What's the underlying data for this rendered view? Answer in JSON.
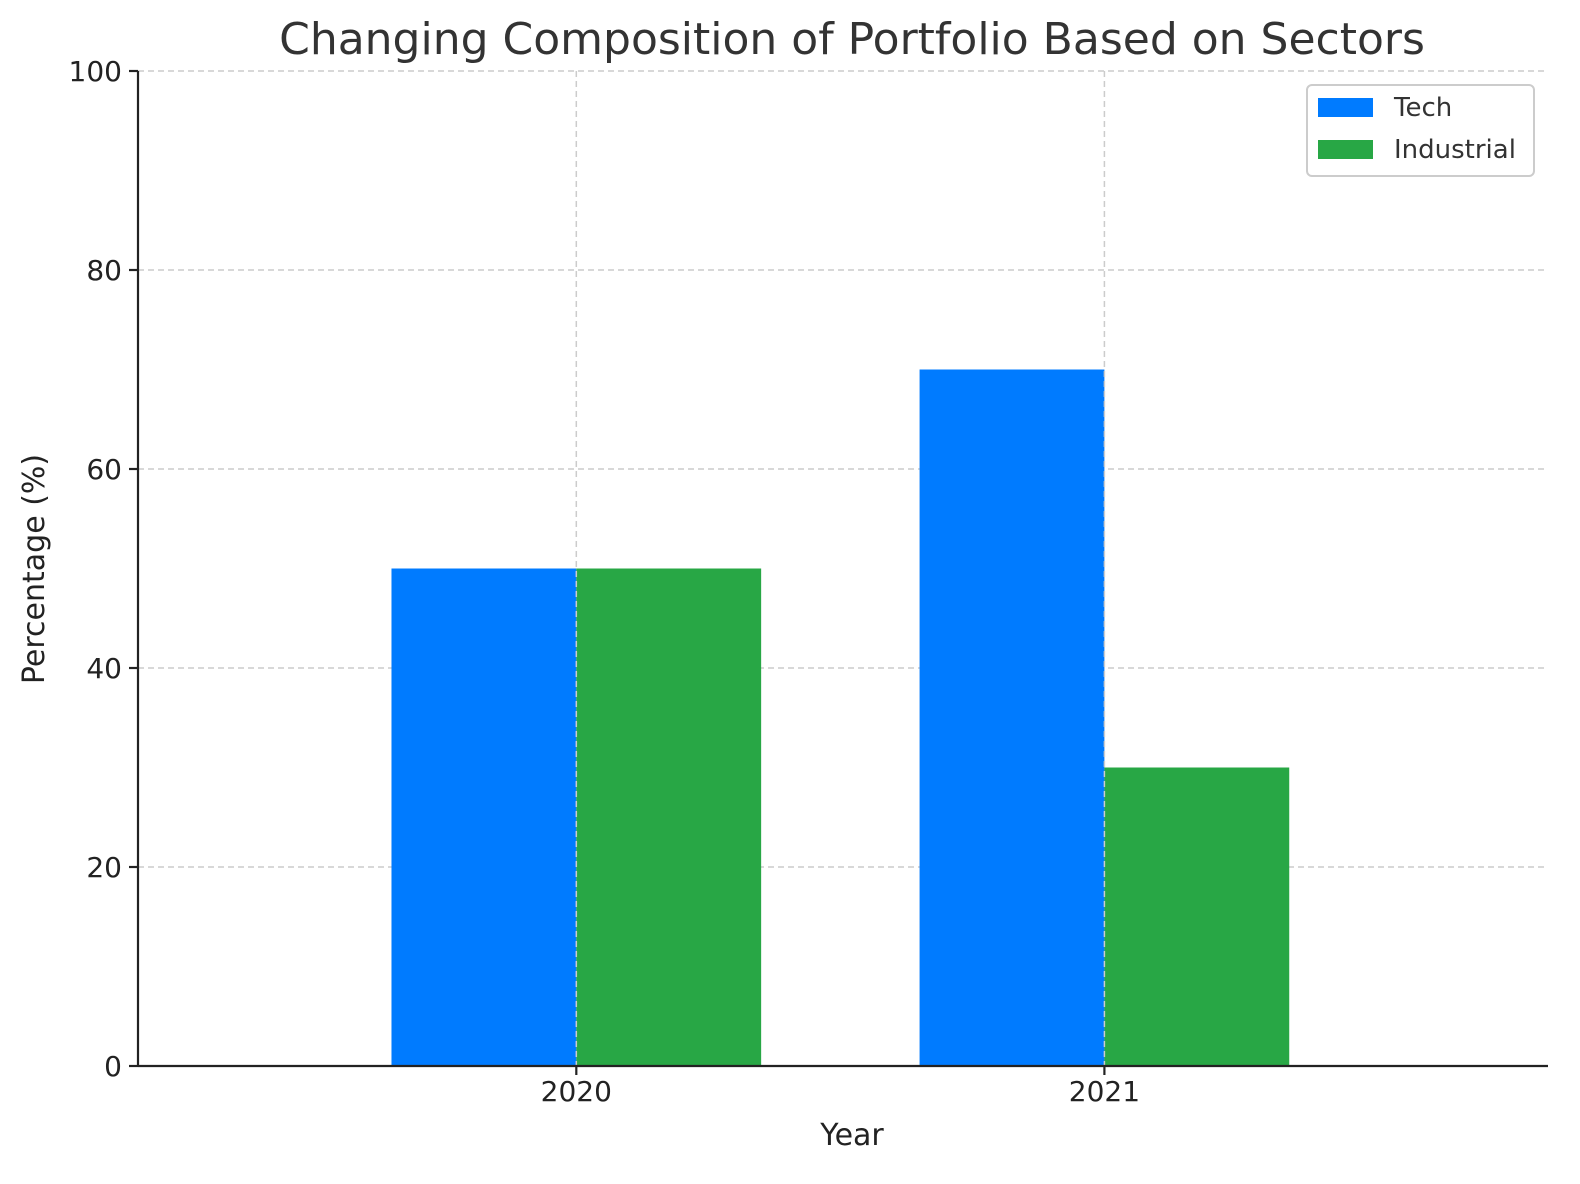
{
  "chart_data": {
    "type": "bar",
    "title": "Changing Composition of Portfolio Based on Sectors",
    "xlabel": "Year",
    "ylabel": "Percentage (%)",
    "categories": [
      "2020",
      "2021"
    ],
    "series": [
      {
        "name": "Tech",
        "values": [
          50,
          70
        ],
        "color": "#007bff"
      },
      {
        "name": "Industrial",
        "values": [
          50,
          30
        ],
        "color": "#28a745"
      }
    ],
    "ylim": [
      0,
      100
    ],
    "yticks": [
      0,
      20,
      40,
      60,
      80,
      100
    ],
    "grid": true,
    "legend_position": "top-right"
  }
}
